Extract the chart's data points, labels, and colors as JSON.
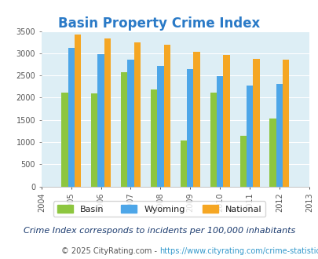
{
  "title": "Basin Property Crime Index",
  "years": [
    2004,
    2005,
    2006,
    2007,
    2008,
    2009,
    2010,
    2011,
    2012,
    2013
  ],
  "basin": [
    null,
    2120,
    2090,
    2580,
    2180,
    1040,
    2120,
    1150,
    1530,
    null
  ],
  "wyoming": [
    null,
    3130,
    2980,
    2850,
    2720,
    2640,
    2480,
    2280,
    2310,
    null
  ],
  "national": [
    null,
    3420,
    3330,
    3250,
    3200,
    3030,
    2960,
    2880,
    2850,
    null
  ],
  "bar_colors": {
    "basin": "#8dc63f",
    "wyoming": "#4da6e8",
    "national": "#f5a623"
  },
  "ylim": [
    0,
    3500
  ],
  "yticks": [
    0,
    500,
    1000,
    1500,
    2000,
    2500,
    3000,
    3500
  ],
  "background_color": "#ddeef5",
  "grid_color": "#ffffff",
  "title_color": "#2a7ac7",
  "legend_text_color": "#222222",
  "note_color": "#1a3a6e",
  "footer_text_color": "#555555",
  "footer_link_color": "#3399cc",
  "legend_labels": [
    "Basin",
    "Wyoming",
    "National"
  ],
  "note": "Crime Index corresponds to incidents per 100,000 inhabitants",
  "footer_prefix": "© 2025 CityRating.com - ",
  "footer_link": "https://www.cityrating.com/crime-statistics/",
  "bar_width": 0.22,
  "title_fontsize": 12,
  "note_fontsize": 8,
  "footer_fontsize": 7,
  "tick_fontsize": 7,
  "legend_fontsize": 8
}
